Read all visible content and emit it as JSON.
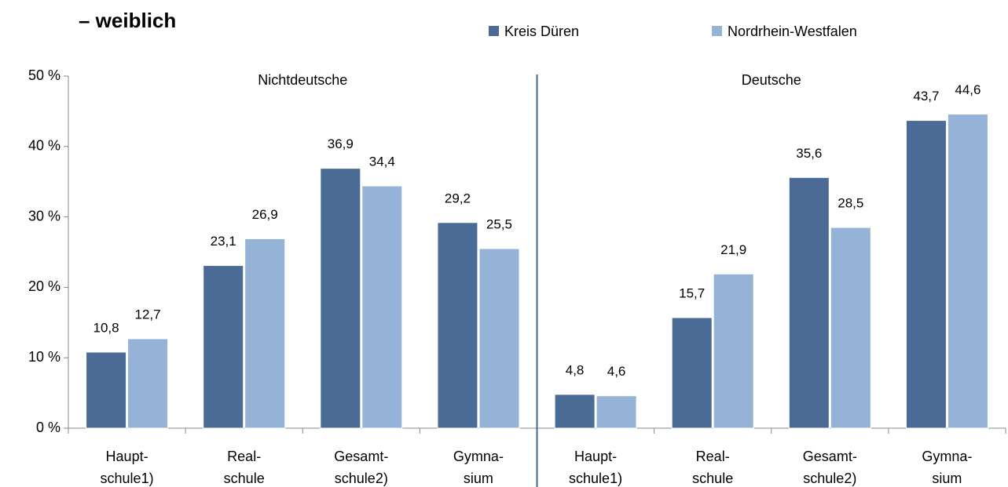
{
  "chart_data": {
    "type": "bar",
    "title": "– weiblich",
    "groups": [
      "Nichtdeutsche",
      "Deutsche"
    ],
    "categories": [
      [
        "Haupt-",
        "schule1)"
      ],
      [
        "Real-",
        "schule"
      ],
      [
        "Gesamt-",
        "schule2)"
      ],
      [
        "Gymna-",
        "sium"
      ],
      [
        "Haupt-",
        "schule1)"
      ],
      [
        "Real-",
        "schule"
      ],
      [
        "Gesamt-",
        "schule2)"
      ],
      [
        "Gymna-",
        "sium"
      ]
    ],
    "series": [
      {
        "name": "Kreis Düren",
        "color": "#4a6b96",
        "values": [
          10.8,
          23.1,
          36.9,
          29.2,
          4.8,
          15.7,
          35.6,
          43.7
        ],
        "value_labels": [
          "10,8",
          "23,1",
          "36,9",
          "29,2",
          "4,8",
          "15,7",
          "35,6",
          "43,7"
        ]
      },
      {
        "name": "Nordrhein-Westfalen",
        "color": "#95b3d7",
        "values": [
          12.7,
          26.9,
          34.4,
          25.5,
          4.6,
          21.9,
          28.5,
          44.6
        ],
        "value_labels": [
          "12,7",
          "26,9",
          "34,4",
          "25,5",
          "4,6",
          "21,9",
          "28,5",
          "44,6"
        ]
      }
    ],
    "ylim": [
      0,
      50
    ],
    "yticks": [
      {
        "value": 0,
        "label": "0 %"
      },
      {
        "value": 10,
        "label": "10 %"
      },
      {
        "value": 20,
        "label": "20 %"
      },
      {
        "value": 30,
        "label": "30 %"
      },
      {
        "value": 40,
        "label": "40 %"
      },
      {
        "value": 50,
        "label": "50 %"
      }
    ],
    "legend": "top"
  }
}
